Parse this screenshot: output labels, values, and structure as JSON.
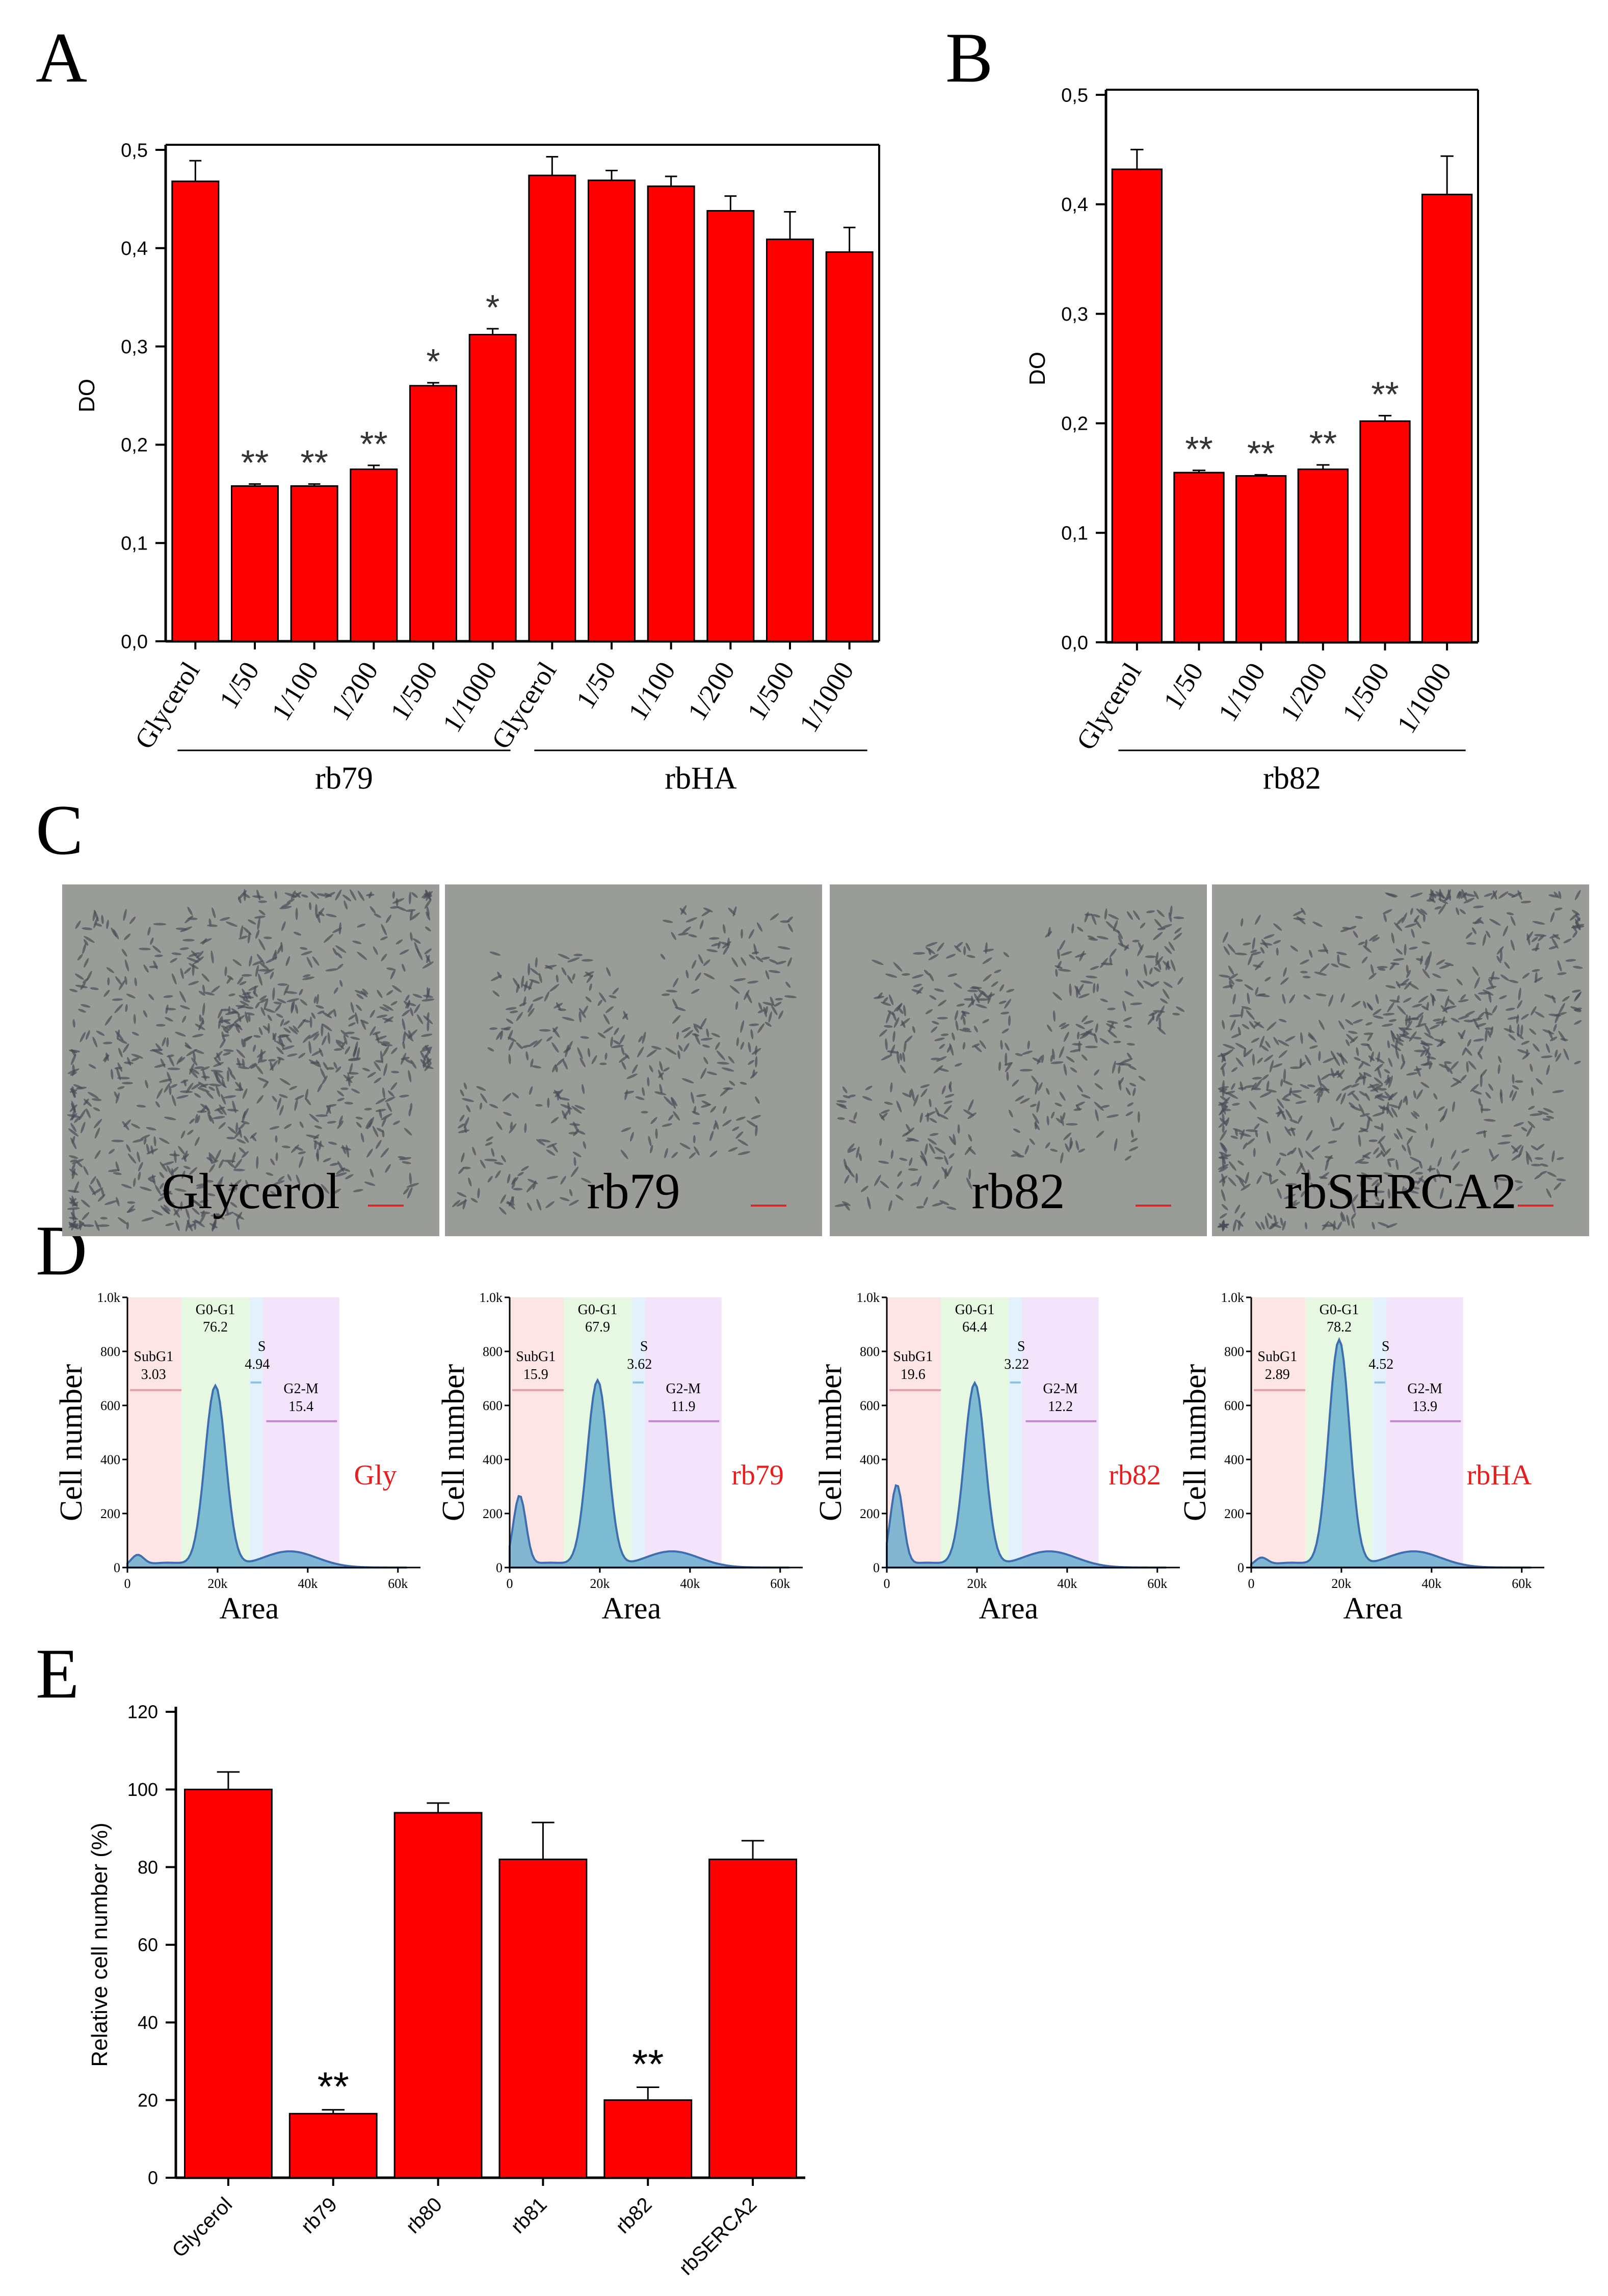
{
  "figure": {
    "panel_labels": [
      "A",
      "B",
      "C",
      "D",
      "E"
    ]
  },
  "chart_data": [
    {
      "panel": "A",
      "type": "bar",
      "ylabel": "DO",
      "ylim": [
        0,
        0.5
      ],
      "yticks": [
        "0,0",
        "0,1",
        "0,2",
        "0,3",
        "0,4",
        "0,5"
      ],
      "ytick_values": [
        0,
        0.1,
        0.2,
        0.3,
        0.4,
        0.5
      ],
      "categories": [
        "Glycerol",
        "1/50",
        "1/100",
        "1/200",
        "1/500",
        "1/1000",
        "Glycerol",
        "1/50",
        "1/100",
        "1/200",
        "1/500",
        "1/1000"
      ],
      "values": [
        0.468,
        0.158,
        0.158,
        0.175,
        0.26,
        0.312,
        0.474,
        0.469,
        0.463,
        0.438,
        0.409,
        0.396
      ],
      "errors": [
        0.021,
        0.002,
        0.002,
        0.004,
        0.003,
        0.006,
        0.019,
        0.01,
        0.01,
        0.015,
        0.028,
        0.025
      ],
      "significance": [
        "",
        "**",
        "**",
        "**",
        "*",
        "*",
        "",
        "",
        "",
        "",
        "",
        ""
      ],
      "groups": [
        {
          "label": "rb79",
          "from": 0,
          "to": 5
        },
        {
          "label": "rbHA",
          "from": 6,
          "to": 11
        }
      ],
      "bar_color": "#ff0000"
    },
    {
      "panel": "B",
      "type": "bar",
      "ylabel": "DO",
      "ylim": [
        0,
        0.5
      ],
      "yticks": [
        "0,0",
        "0,1",
        "0,2",
        "0,3",
        "0,4",
        "0,5"
      ],
      "ytick_values": [
        0,
        0.1,
        0.2,
        0.3,
        0.4,
        0.5
      ],
      "categories": [
        "Glycerol",
        "1/50",
        "1/100",
        "1/200",
        "1/500",
        "1/1000"
      ],
      "values": [
        0.432,
        0.155,
        0.152,
        0.158,
        0.202,
        0.409
      ],
      "errors": [
        0.018,
        0.002,
        0.001,
        0.004,
        0.005,
        0.035
      ],
      "significance": [
        "",
        "**",
        "**",
        "**",
        "**",
        ""
      ],
      "groups": [
        {
          "label": "rb82",
          "from": 0,
          "to": 5
        }
      ],
      "bar_color": "#ff0000"
    },
    {
      "panel": "D",
      "type": "area",
      "xlabel": "Area",
      "ylabel": "Cell number",
      "xlim": [
        0,
        65000
      ],
      "ylim": [
        0,
        1000
      ],
      "xticks": [
        "0",
        "20k",
        "40k",
        "60k"
      ],
      "xtick_values": [
        0,
        20000,
        40000,
        60000
      ],
      "yticks": [
        "0",
        "200",
        "400",
        "600",
        "800",
        "1.0k"
      ],
      "ytick_values": [
        0,
        200,
        400,
        600,
        800,
        1000
      ],
      "gate_names": [
        "SubG1",
        "G0-G1",
        "S",
        "G2-M"
      ],
      "histograms": [
        {
          "condition": "Gly",
          "SubG1": "3.03",
          "G0-G1": "76.2",
          "S": "4.94",
          "G2-M": "15.4",
          "peak": 670,
          "sub_peak": 40
        },
        {
          "condition": "rb79",
          "SubG1": "15.9",
          "G0-G1": "67.9",
          "S": "3.62",
          "G2-M": "11.9",
          "peak": 690,
          "sub_peak": 260
        },
        {
          "condition": "rb82",
          "SubG1": "19.6",
          "G0-G1": "64.4",
          "S": "3.22",
          "G2-M": "12.2",
          "peak": 680,
          "sub_peak": 300
        },
        {
          "condition": "rbHA",
          "SubG1": "2.89",
          "G0-G1": "78.2",
          "S": "4.52",
          "G2-M": "13.9",
          "peak": 840,
          "sub_peak": 30
        }
      ]
    },
    {
      "panel": "E",
      "type": "bar",
      "ylabel": "Relative cell number (%)",
      "ylim": [
        0,
        120
      ],
      "yticks": [
        "0",
        "20",
        "40",
        "60",
        "80",
        "100",
        "120"
      ],
      "ytick_values": [
        0,
        20,
        40,
        60,
        80,
        100,
        120
      ],
      "categories": [
        "Glycerol",
        "rb79",
        "rb80",
        "rb81",
        "rb82",
        "rbSERCA2"
      ],
      "values": [
        100,
        16.5,
        94,
        82,
        20,
        82
      ],
      "errors": [
        4.5,
        1,
        2.5,
        9.5,
        3.3,
        4.8
      ],
      "significance": [
        "",
        "**",
        "",
        "",
        "**",
        ""
      ],
      "bar_color": "#ff0000"
    }
  ],
  "micrographs": {
    "panel": "C",
    "captions": [
      "Glycerol",
      "rb79",
      "rb82",
      "rbSERCA2"
    ],
    "background_color": "#9a9c98",
    "cell_color": "#4b4f58",
    "scalebar_color": "#d02a2a"
  }
}
